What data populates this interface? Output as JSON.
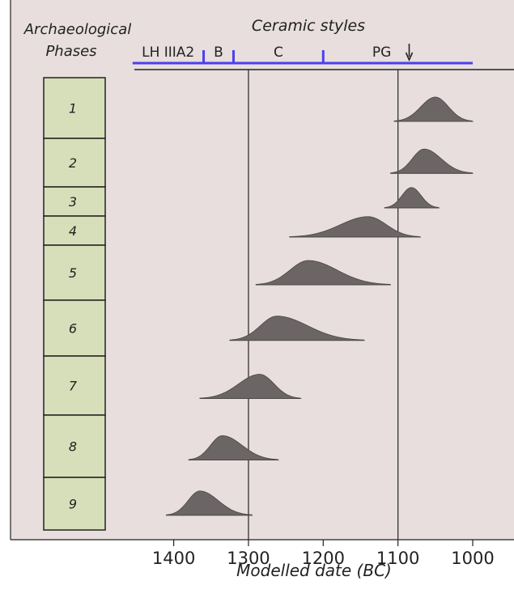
{
  "chart_data": {
    "type": "area",
    "title": "",
    "xlabel": "Modelled date (BC)",
    "x_ticks": [
      1400,
      1300,
      1200,
      1100,
      1000
    ],
    "xlim": [
      1455,
      1000
    ],
    "x_reversed": true,
    "phases_header": [
      "Archaeological",
      "Phases"
    ],
    "ceramic_header": "Ceramic styles",
    "ceramic_styles": [
      {
        "label": "LH IIIA2",
        "start": 1455,
        "end": 1360
      },
      {
        "label": "B",
        "start": 1360,
        "end": 1320
      },
      {
        "label": "C",
        "start": 1320,
        "end": 1200
      },
      {
        "label": "PG",
        "start": 1200,
        "end": 1000
      }
    ],
    "pg_arrow_at": 1085,
    "vertical_lines": [
      1300,
      1100
    ],
    "phases": [
      {
        "label": "1",
        "range": [
          1105,
          1000
        ],
        "peak": 1050,
        "rel_height": 1.0
      },
      {
        "label": "2",
        "range": [
          1110,
          1000
        ],
        "peak": 1065,
        "rel_height": 1.0
      },
      {
        "label": "3",
        "range": [
          1118,
          1045
        ],
        "peak": 1082,
        "rel_height": 1.0
      },
      {
        "label": "4",
        "range": [
          1245,
          1070
        ],
        "peak": 1140,
        "rel_height": 1.0
      },
      {
        "label": "5",
        "range": [
          1290,
          1110
        ],
        "peak": 1220,
        "rel_height": 1.0
      },
      {
        "label": "6",
        "range": [
          1325,
          1145
        ],
        "peak": 1262,
        "rel_height": 1.0
      },
      {
        "label": "7",
        "range": [
          1365,
          1230
        ],
        "peak": 1285,
        "rel_height": 1.0
      },
      {
        "label": "8",
        "range": [
          1380,
          1260
        ],
        "peak": 1335,
        "rel_height": 1.0
      },
      {
        "label": "9",
        "range": [
          1410,
          1295
        ],
        "peak": 1365,
        "rel_height": 1.0
      }
    ]
  },
  "colors": {
    "background": "#e7dedd",
    "phase_box": "#d6dfb9",
    "distribution": "#6b6565",
    "ceramic_line": "#4d3ff0"
  }
}
